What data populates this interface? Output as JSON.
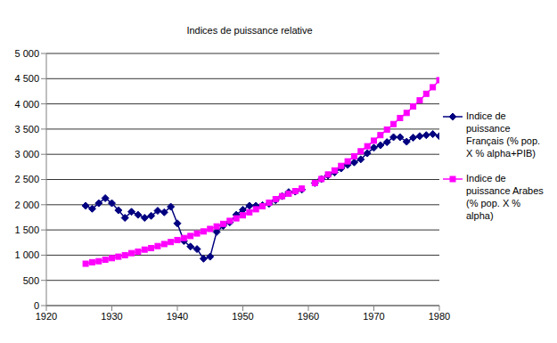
{
  "chart_data": {
    "type": "line",
    "title": "Indices de puissance relative",
    "x": [
      1926,
      1927,
      1928,
      1929,
      1930,
      1931,
      1932,
      1933,
      1934,
      1935,
      1936,
      1937,
      1938,
      1939,
      1940,
      1941,
      1942,
      1943,
      1944,
      1945,
      1946,
      1947,
      1948,
      1949,
      1950,
      1951,
      1952,
      1953,
      1954,
      1955,
      1956,
      1957,
      1958,
      1959,
      1960,
      1961,
      1962,
      1963,
      1964,
      1965,
      1966,
      1967,
      1968,
      1969,
      1970,
      1971,
      1972,
      1973,
      1974,
      1975,
      1976,
      1977,
      1978,
      1979,
      1980
    ],
    "series": [
      {
        "name": "Indice de puissance Français (% pop. X % alpha+PIB)",
        "color": "#000080",
        "marker": "diamond",
        "values": [
          1980,
          1920,
          2030,
          2130,
          2030,
          1890,
          1740,
          1860,
          1800,
          1740,
          1780,
          1880,
          1850,
          1960,
          1630,
          1280,
          1170,
          1120,
          930,
          970,
          1460,
          1580,
          1650,
          1800,
          1900,
          1980,
          1980,
          1990,
          2020,
          2090,
          2170,
          2250,
          2260,
          2300,
          null,
          2430,
          2510,
          2580,
          2640,
          2720,
          2790,
          2840,
          2900,
          3020,
          3130,
          3180,
          3240,
          3340,
          3340,
          3250,
          3330,
          3360,
          3380,
          3400,
          3360
        ]
      },
      {
        "name": "Indice de puissance Arabes (% pop. X % alpha)",
        "color": "#ff00ff",
        "marker": "square",
        "values": [
          830,
          860,
          880,
          910,
          940,
          970,
          1000,
          1040,
          1070,
          1110,
          1140,
          1180,
          1220,
          1260,
          1300,
          1340,
          1380,
          1430,
          1470,
          1520,
          1570,
          1620,
          1680,
          1730,
          1790,
          1850,
          1910,
          1970,
          2040,
          2110,
          2170,
          2220,
          2270,
          2320,
          null,
          2430,
          2510,
          2600,
          2680,
          2770,
          2860,
          2960,
          3060,
          3160,
          3270,
          3380,
          3490,
          3600,
          3720,
          3820,
          3950,
          4070,
          4200,
          4330,
          4470
        ]
      }
    ],
    "xlim": [
      1920,
      1980
    ],
    "xticks": [
      1920,
      1930,
      1940,
      1950,
      1960,
      1970,
      1980
    ],
    "ylim": [
      0,
      5000
    ],
    "yticks": [
      0,
      500,
      {
        "value": 1000,
        "label": "1 000"
      },
      {
        "value": 1500,
        "label": "1 500"
      },
      {
        "value": 2000,
        "label": "2 000"
      },
      {
        "value": 2500,
        "label": "2 500"
      },
      {
        "value": 3000,
        "label": "3 000"
      },
      {
        "value": 3500,
        "label": "3 500"
      },
      {
        "value": 4000,
        "label": "4 000"
      },
      {
        "value": 4500,
        "label": "4 500"
      },
      {
        "value": 5000,
        "label": "5 000"
      }
    ],
    "grid": true,
    "legend": "right"
  }
}
